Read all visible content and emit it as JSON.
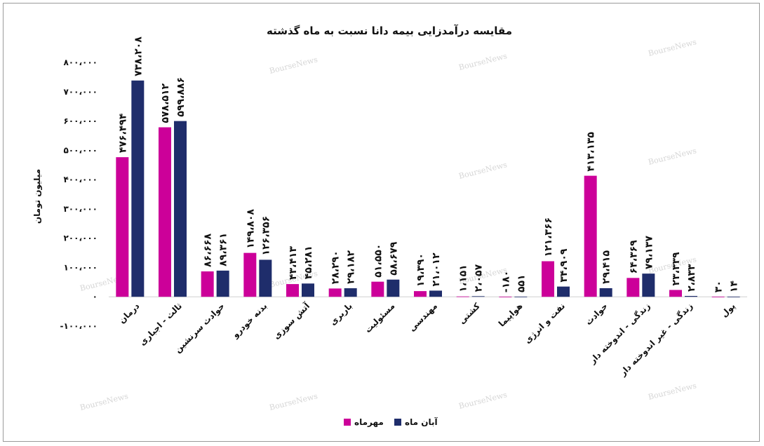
{
  "chart_data": {
    "type": "bar",
    "title": "مقایسه درآمدزایی بیمه دانا نسبت به ماه گذشته",
    "xlabel": "",
    "ylabel": "میلیون تومان",
    "ylim": [
      -100000,
      800000
    ],
    "yticks": [
      -100000,
      0,
      100000,
      200000,
      300000,
      400000,
      500000,
      600000,
      700000,
      800000
    ],
    "ytick_labels": [
      "-۱۰۰،۰۰۰",
      "۰",
      "۱۰۰،۰۰۰",
      "۲۰۰،۰۰۰",
      "۳۰۰،۰۰۰",
      "۴۰۰،۰۰۰",
      "۵۰۰،۰۰۰",
      "۶۰۰،۰۰۰",
      "۷۰۰،۰۰۰",
      "۸۰۰،۰۰۰"
    ],
    "legend_position": "bottom",
    "categories": [
      "درمان",
      "ثالث - اجباری",
      "حوادث سرنشین",
      "بدنه خودرو",
      "آتش سوزی",
      "باربری",
      "مسئولیت",
      "مهندسی",
      "کشتی",
      "هواپیما",
      "نفت و انرژی",
      "حوادث",
      "زندگی - اندوخته دار",
      "زندگی - غیر اندوخته دار",
      "پول"
    ],
    "series": [
      {
        "name": "مهرماه",
        "color": "#cc0099",
        "values": [
          476494,
          578512,
          86668,
          149808,
          43413,
          28290,
          51550,
          19390,
          1151,
          -180,
          121366,
          413135,
          64369,
          23339,
          30
        ],
        "labels": [
          "۴۷۶،۴۹۴",
          "۵۷۸،۵۱۲",
          "۸۶،۶۶۸",
          "۱۴۹،۸۰۸",
          "۴۳،۴۱۳",
          "۲۸،۲۹۰",
          "۵۱،۵۵۰",
          "۱۹،۳۹۰",
          "۱،۱۵۱",
          "-۱۸۰",
          "۱۲۱،۳۶۶",
          "۴۱۳،۱۳۵",
          "۶۴،۳۶۹",
          "۲۳،۳۳۹",
          "۳۰"
        ]
      },
      {
        "name": "آبان ماه",
        "color": "#1f2d6b",
        "values": [
          738208,
          599886,
          89361,
          126356,
          45281,
          29182,
          58679,
          21012,
          2057,
          551,
          34909,
          29415,
          79137,
          2833,
          14
        ],
        "labels": [
          "۷۳۸،۲۰۸",
          "۵۹۹،۸۸۶",
          "۸۹،۳۶۱",
          "۱۲۶،۳۵۶",
          "۴۵،۲۸۱",
          "۲۹،۱۸۲",
          "۵۸،۶۷۹",
          "۲۱،۰۱۲",
          "۲،۰۵۷",
          "۵۵۱",
          "۳۴،۹۰۹",
          "۲۹،۴۱۵",
          "۷۹،۱۳۷",
          "۲،۸۳۳",
          "۱۴"
        ]
      }
    ],
    "watermark": "BourseNews"
  }
}
